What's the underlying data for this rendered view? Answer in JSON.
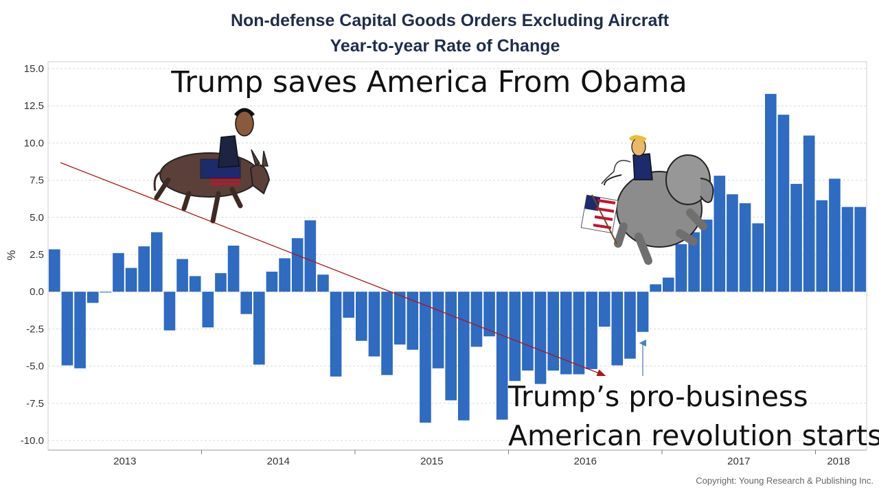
{
  "chart_data": {
    "type": "bar",
    "title": "Non-defense Capital Goods Orders Excluding Aircraft",
    "subtitle": "Year-to-year Rate of Change",
    "ylabel": "%",
    "ylim": [
      -10.5,
      15.5
    ],
    "yticks": [
      "15.0",
      "12.5",
      "10.0",
      "7.5",
      "5.0",
      "2.5",
      "0.0",
      "-2.5",
      "-5.0",
      "-7.5",
      "-10.0"
    ],
    "ytick_values": [
      15,
      12.5,
      10,
      7.5,
      5,
      2.5,
      0,
      -2.5,
      -5,
      -7.5,
      -10
    ],
    "x_year_labels": [
      "2013",
      "2014",
      "2015",
      "2016",
      "2017",
      "2018"
    ],
    "grid": true,
    "bar_color": "#2e6bc1",
    "values": [
      2.85,
      -4.95,
      -5.15,
      -0.75,
      -0.05,
      2.6,
      1.6,
      3.05,
      4.0,
      -2.6,
      2.2,
      1.05,
      -2.4,
      1.25,
      3.1,
      -1.5,
      -4.9,
      1.35,
      2.25,
      3.6,
      4.8,
      1.15,
      -5.7,
      -1.75,
      -3.3,
      -4.35,
      -5.6,
      -3.55,
      -3.9,
      -8.8,
      -5.15,
      -7.3,
      -8.65,
      -3.7,
      -3.0,
      -8.6,
      -6.0,
      -5.3,
      -6.2,
      -5.3,
      -5.55,
      -5.55,
      -5.2,
      -2.35,
      -4.95,
      -4.5,
      -2.7,
      0.5,
      0.95,
      3.2,
      4.0,
      4.85,
      7.8,
      6.55,
      5.95,
      4.6,
      13.3,
      11.9,
      7.25,
      10.5,
      6.15,
      7.6,
      5.7,
      5.7
    ]
  },
  "annotations": {
    "top_text": "Trump saves America From Obama",
    "bottom_text_line1": "Trump’s pro-business",
    "bottom_text_line2": "American  revolution starts",
    "copyright": "Copyright: Young Research & Publishing Inc.",
    "trend_color": "#b01515",
    "marker_color": "#4a7fc1"
  }
}
